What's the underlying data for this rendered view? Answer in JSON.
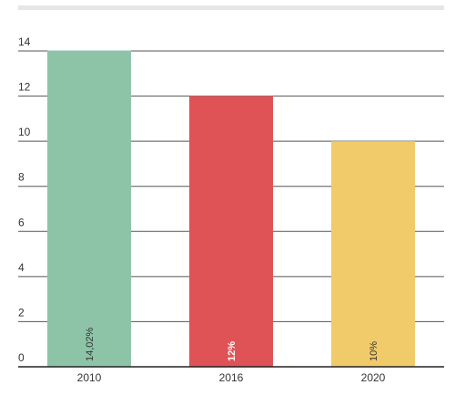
{
  "chart_data": {
    "type": "bar",
    "categories": [
      "2010",
      "2016",
      "2020"
    ],
    "values": [
      14.02,
      12,
      10
    ],
    "data_labels": [
      "14,02%",
      "12%",
      "10%"
    ],
    "bar_colors": [
      "#8dc4a8",
      "#df5356",
      "#f1cb6a"
    ],
    "data_label_colors": [
      "#333333",
      "#ffffff",
      "#333333"
    ],
    "y_ticks": [
      "0",
      "2",
      "4",
      "6",
      "8",
      "10",
      "12",
      "14"
    ],
    "ylim": [
      0,
      14
    ],
    "grid": true,
    "legend": "none",
    "title": "",
    "xlabel": "",
    "ylabel": ""
  },
  "colors": {
    "grid": "#555555",
    "axis": "#222222",
    "top_band": "#e6e6e6"
  }
}
